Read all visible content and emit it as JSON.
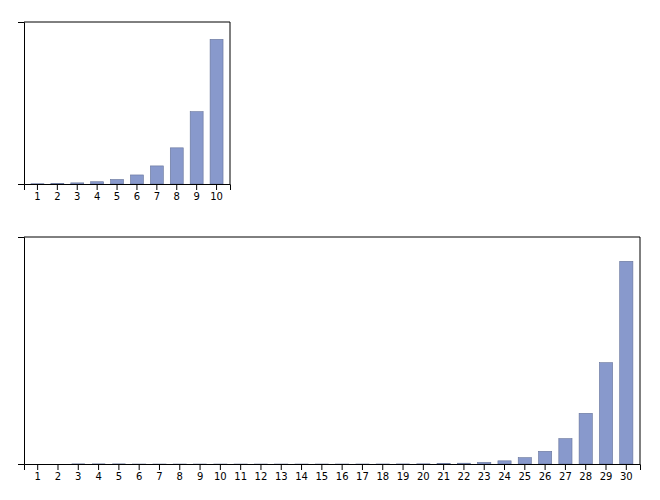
{
  "chart_data": [
    {
      "type": "bar",
      "categories": [
        "1",
        "2",
        "3",
        "4",
        "5",
        "6",
        "7",
        "8",
        "9",
        "10"
      ],
      "values": [
        2,
        4,
        8,
        16,
        32,
        64,
        128,
        256,
        512,
        1024
      ],
      "color": "#8899cc",
      "ylim": [
        0,
        1146.88
      ],
      "tick_labels": "x"
    },
    {
      "type": "bar",
      "categories": [
        "1",
        "2",
        "3",
        "4",
        "5",
        "6",
        "7",
        "8",
        "9",
        "10",
        "11",
        "12",
        "13",
        "14",
        "15",
        "16",
        "17",
        "18",
        "19",
        "20",
        "21",
        "22",
        "23",
        "24",
        "25",
        "26",
        "27",
        "28",
        "29",
        "30"
      ],
      "values": [
        2,
        4,
        8,
        16,
        32,
        64,
        128,
        256,
        512,
        1024,
        2048,
        4096,
        8192,
        16384,
        32768,
        65536,
        131072,
        262144,
        524288,
        1048576,
        2097152,
        4194304,
        8388608,
        16777216,
        33554432,
        67108864,
        134217728,
        268435456,
        536870912,
        1073741824
      ],
      "color": "#8899cc",
      "ylim": [
        0,
        1202590842.88
      ],
      "tick_labels": "x"
    }
  ]
}
